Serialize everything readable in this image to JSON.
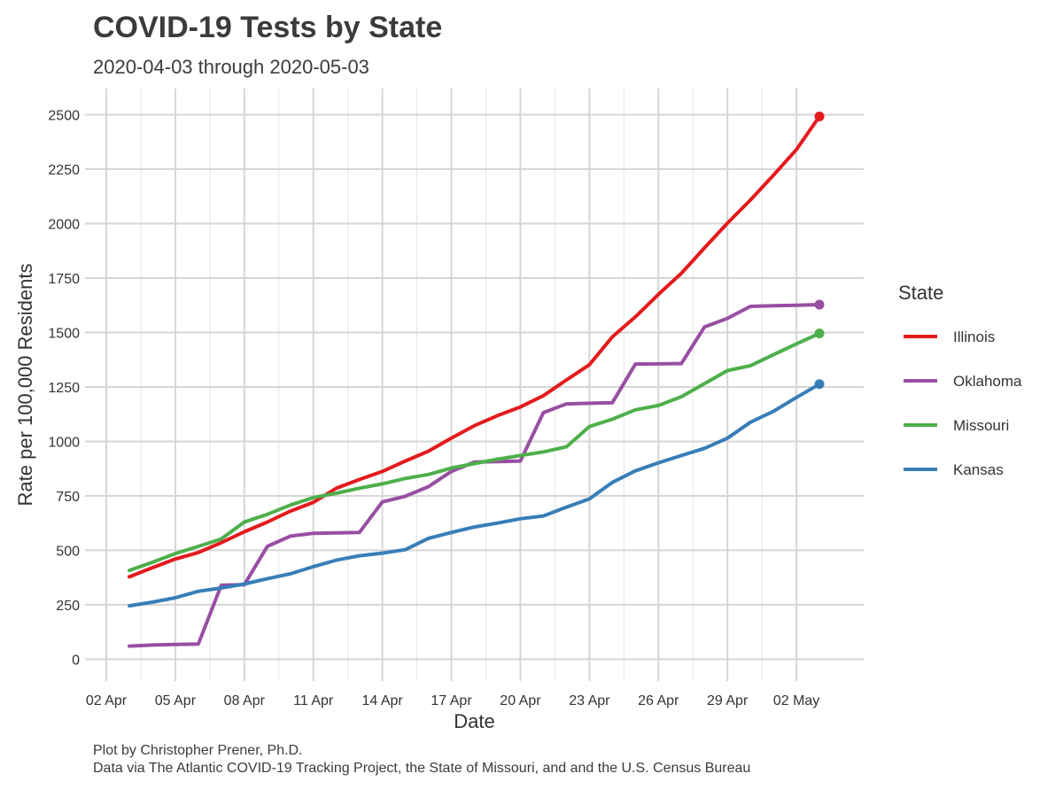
{
  "chart_data": {
    "type": "line",
    "title": "COVID-19 Tests by State",
    "subtitle": "2020-04-03 through 2020-05-03",
    "xlabel": "Date",
    "ylabel": "Rate per 100,000 Residents",
    "x_start": "2020-04-03",
    "x": [
      "2020-04-03",
      "2020-04-04",
      "2020-04-05",
      "2020-04-06",
      "2020-04-07",
      "2020-04-08",
      "2020-04-09",
      "2020-04-10",
      "2020-04-11",
      "2020-04-12",
      "2020-04-13",
      "2020-04-14",
      "2020-04-15",
      "2020-04-16",
      "2020-04-17",
      "2020-04-18",
      "2020-04-19",
      "2020-04-20",
      "2020-04-21",
      "2020-04-22",
      "2020-04-23",
      "2020-04-24",
      "2020-04-25",
      "2020-04-26",
      "2020-04-27",
      "2020-04-28",
      "2020-04-29",
      "2020-04-30",
      "2020-05-01",
      "2020-05-02",
      "2020-05-03"
    ],
    "xlim": [
      "2020-04-02",
      "2020-05-04"
    ],
    "ylim": [
      -100,
      2620
    ],
    "x_ticks": [
      "2020-04-02",
      "2020-04-05",
      "2020-04-08",
      "2020-04-11",
      "2020-04-14",
      "2020-04-17",
      "2020-04-20",
      "2020-04-23",
      "2020-04-26",
      "2020-04-29",
      "2020-05-02"
    ],
    "x_tick_labels": [
      "02 Apr",
      "05 Apr",
      "08 Apr",
      "11 Apr",
      "14 Apr",
      "17 Apr",
      "20 Apr",
      "23 Apr",
      "26 Apr",
      "29 Apr",
      "02 May"
    ],
    "y_ticks": [
      0,
      250,
      500,
      750,
      1000,
      1250,
      1500,
      1750,
      2000,
      2250,
      2500
    ],
    "grid": true,
    "legend": {
      "title": "State",
      "position": "right"
    },
    "series": [
      {
        "name": "Illinois",
        "color": "#e41a1c",
        "values": [
          378,
          420,
          460,
          490,
          535,
          585,
          630,
          680,
          720,
          785,
          825,
          862,
          910,
          955,
          1015,
          1072,
          1118,
          1158,
          1210,
          1282,
          1352,
          1480,
          1572,
          1675,
          1772,
          1888,
          2002,
          2108,
          2222,
          2340,
          2492
        ]
      },
      {
        "name": "Oklahoma",
        "color": "#984ea3",
        "values": [
          60,
          65,
          68,
          70,
          340,
          342,
          518,
          565,
          578,
          580,
          582,
          722,
          748,
          792,
          862,
          905,
          907,
          910,
          1132,
          1172,
          1175,
          1178,
          1355,
          1356,
          1357,
          1525,
          1565,
          1620,
          1623,
          1625,
          1628
        ]
      },
      {
        "name": "Missouri",
        "color": "#4daf4a",
        "values": [
          408,
          445,
          485,
          518,
          552,
          630,
          665,
          708,
          742,
          762,
          785,
          805,
          830,
          848,
          878,
          898,
          918,
          935,
          952,
          975,
          1068,
          1102,
          1145,
          1165,
          1205,
          1265,
          1325,
          1348,
          1398,
          1448,
          1496
        ]
      },
      {
        "name": "Kansas",
        "color": "#377eb8",
        "values": [
          245,
          262,
          282,
          312,
          327,
          345,
          370,
          392,
          425,
          455,
          475,
          487,
          503,
          555,
          582,
          607,
          625,
          645,
          658,
          698,
          736,
          812,
          865,
          902,
          935,
          968,
          1015,
          1088,
          1138,
          1202,
          1263
        ]
      }
    ]
  },
  "caption_lines": [
    "Plot by Christopher Prener, Ph.D.",
    "Data via The Atlantic COVID-19 Tracking Project, the State of Missouri, and and the U.S. Census Bureau"
  ]
}
